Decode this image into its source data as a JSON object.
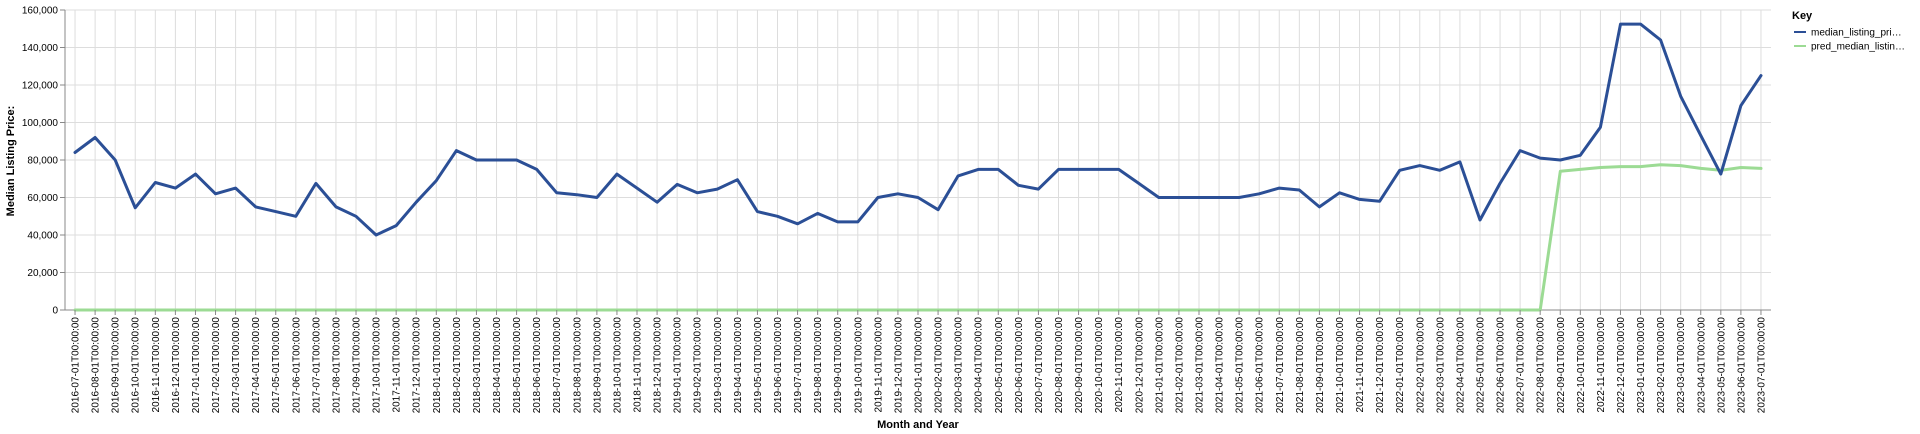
{
  "chart_data": {
    "type": "line",
    "xlabel": "Month and Year",
    "ylabel": "Median Listing Price:",
    "ylim": [
      0,
      160000
    ],
    "y_ticks": [
      "0",
      "20,000",
      "40,000",
      "60,000",
      "80,000",
      "100,000",
      "120,000",
      "140,000",
      "160,000"
    ],
    "grid": true,
    "legend_title": "Key",
    "legend_position": "top-right",
    "categories": [
      "2016-07-01T00:00:00",
      "2016-08-01T00:00:00",
      "2016-09-01T00:00:00",
      "2016-10-01T00:00:00",
      "2016-11-01T00:00:00",
      "2016-12-01T00:00:00",
      "2017-01-01T00:00:00",
      "2017-02-01T00:00:00",
      "2017-03-01T00:00:00",
      "2017-04-01T00:00:00",
      "2017-05-01T00:00:00",
      "2017-06-01T00:00:00",
      "2017-07-01T00:00:00",
      "2017-08-01T00:00:00",
      "2017-09-01T00:00:00",
      "2017-10-01T00:00:00",
      "2017-11-01T00:00:00",
      "2017-12-01T00:00:00",
      "2018-01-01T00:00:00",
      "2018-02-01T00:00:00",
      "2018-03-01T00:00:00",
      "2018-04-01T00:00:00",
      "2018-05-01T00:00:00",
      "2018-06-01T00:00:00",
      "2018-07-01T00:00:00",
      "2018-08-01T00:00:00",
      "2018-09-01T00:00:00",
      "2018-10-01T00:00:00",
      "2018-11-01T00:00:00",
      "2018-12-01T00:00:00",
      "2019-01-01T00:00:00",
      "2019-02-01T00:00:00",
      "2019-03-01T00:00:00",
      "2019-04-01T00:00:00",
      "2019-05-01T00:00:00",
      "2019-06-01T00:00:00",
      "2019-07-01T00:00:00",
      "2019-08-01T00:00:00",
      "2019-09-01T00:00:00",
      "2019-10-01T00:00:00",
      "2019-11-01T00:00:00",
      "2019-12-01T00:00:00",
      "2020-01-01T00:00:00",
      "2020-02-01T00:00:00",
      "2020-03-01T00:00:00",
      "2020-04-01T00:00:00",
      "2020-05-01T00:00:00",
      "2020-06-01T00:00:00",
      "2020-07-01T00:00:00",
      "2020-08-01T00:00:00",
      "2020-09-01T00:00:00",
      "2020-10-01T00:00:00",
      "2020-11-01T00:00:00",
      "2020-12-01T00:00:00",
      "2021-01-01T00:00:00",
      "2021-02-01T00:00:00",
      "2021-03-01T00:00:00",
      "2021-04-01T00:00:00",
      "2021-05-01T00:00:00",
      "2021-06-01T00:00:00",
      "2021-07-01T00:00:00",
      "2021-08-01T00:00:00",
      "2021-09-01T00:00:00",
      "2021-10-01T00:00:00",
      "2021-11-01T00:00:00",
      "2021-12-01T00:00:00",
      "2022-01-01T00:00:00",
      "2022-02-01T00:00:00",
      "2022-03-01T00:00:00",
      "2022-04-01T00:00:00",
      "2022-05-01T00:00:00",
      "2022-06-01T00:00:00",
      "2022-07-01T00:00:00",
      "2022-08-01T00:00:00",
      "2022-09-01T00:00:00",
      "2022-10-01T00:00:00",
      "2022-11-01T00:00:00",
      "2022-12-01T00:00:00",
      "2023-01-01T00:00:00",
      "2023-02-01T00:00:00",
      "2023-03-01T00:00:00",
      "2023-04-01T00:00:00",
      "2023-05-01T00:00:00",
      "2023-06-01T00:00:00",
      "2023-07-01T00:00:00"
    ],
    "series": [
      {
        "name": "median_listing_pri…",
        "color": "#2b4f96",
        "values": [
          84000,
          92000,
          80000,
          54500,
          68000,
          65000,
          72500,
          62000,
          65000,
          55000,
          52500,
          50000,
          67500,
          55000,
          50000,
          40000,
          45000,
          57500,
          69000,
          85000,
          80000,
          80000,
          80000,
          75000,
          62500,
          61500,
          60000,
          72500,
          65000,
          57500,
          67000,
          62500,
          64500,
          69500,
          52500,
          50000,
          46000,
          51500,
          47000,
          47000,
          60000,
          62000,
          60000,
          53500,
          71500,
          75000,
          75000,
          66500,
          64500,
          75000,
          75000,
          75000,
          75000,
          67500,
          60000,
          60000,
          60000,
          60000,
          60000,
          62000,
          65000,
          64000,
          55000,
          62500,
          59000,
          58000,
          74500,
          77000,
          74500,
          79000,
          48000,
          67500,
          85000,
          81000,
          80000,
          82500,
          97500,
          152500,
          152500,
          144000,
          114000,
          93000,
          72500,
          109000,
          125000
        ]
      },
      {
        "name": "pred_median_listin…",
        "color": "#9cdb94",
        "values": [
          0,
          0,
          0,
          0,
          0,
          0,
          0,
          0,
          0,
          0,
          0,
          0,
          0,
          0,
          0,
          0,
          0,
          0,
          0,
          0,
          0,
          0,
          0,
          0,
          0,
          0,
          0,
          0,
          0,
          0,
          0,
          0,
          0,
          0,
          0,
          0,
          0,
          0,
          0,
          0,
          0,
          0,
          0,
          0,
          0,
          0,
          0,
          0,
          0,
          0,
          0,
          0,
          0,
          0,
          0,
          0,
          0,
          0,
          0,
          0,
          0,
          0,
          0,
          0,
          0,
          0,
          0,
          0,
          0,
          0,
          0,
          0,
          0,
          0,
          74000,
          75000,
          76000,
          76500,
          76500,
          77500,
          77000,
          75500,
          74500,
          76000,
          75500
        ]
      }
    ]
  }
}
